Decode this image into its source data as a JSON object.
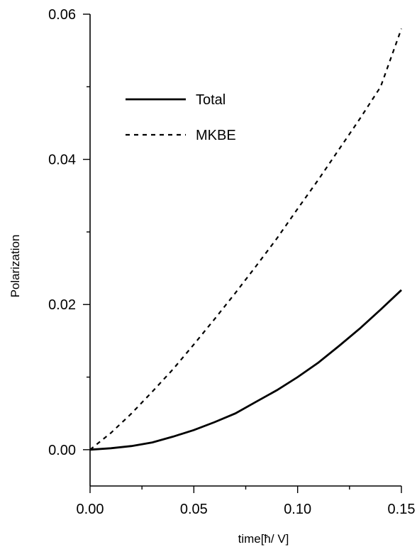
{
  "chart_data": {
    "type": "line",
    "title": "",
    "xlabel": "time[ħ/ V]",
    "ylabel": "Polarization",
    "xlim": [
      0.0,
      0.15
    ],
    "ylim": [
      -0.005,
      0.06
    ],
    "x_ticks": [
      "0.00",
      "0.05",
      "0.10",
      "0.15"
    ],
    "y_ticks": [
      "0.00",
      "0.02",
      "0.04",
      "0.06"
    ],
    "grid": false,
    "legend_position": "top-left",
    "series": [
      {
        "name": "Total",
        "style": "solid",
        "color": "#000000",
        "x": [
          0.0,
          0.01,
          0.02,
          0.03,
          0.04,
          0.05,
          0.06,
          0.07,
          0.08,
          0.09,
          0.1,
          0.11,
          0.12,
          0.13,
          0.14,
          0.15
        ],
        "y": [
          0.0,
          0.0002,
          0.0005,
          0.001,
          0.0018,
          0.0027,
          0.0038,
          0.005,
          0.0066,
          0.0082,
          0.01,
          0.012,
          0.0143,
          0.0167,
          0.0193,
          0.022
        ]
      },
      {
        "name": "MKBE",
        "style": "dashed",
        "color": "#000000",
        "x": [
          0.0,
          0.01,
          0.02,
          0.03,
          0.04,
          0.05,
          0.06,
          0.07,
          0.08,
          0.09,
          0.1,
          0.11,
          0.12,
          0.13,
          0.14,
          0.15
        ],
        "y": [
          0.0,
          0.0023,
          0.005,
          0.008,
          0.0111,
          0.0145,
          0.018,
          0.0216,
          0.0253,
          0.0291,
          0.0332,
          0.0372,
          0.0414,
          0.0456,
          0.05,
          0.058
        ]
      }
    ]
  }
}
